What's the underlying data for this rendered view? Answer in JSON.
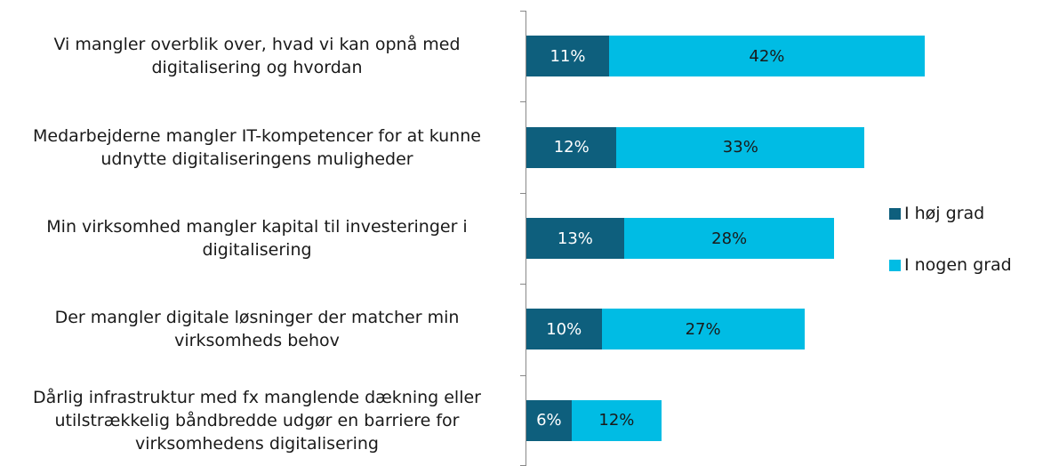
{
  "chart_data": {
    "type": "stacked-bar-horizontal",
    "categories": [
      "Vi mangler overblik over, hvad vi kan opnå med digitalisering og hvordan",
      "Medarbejderne mangler IT-kompetencer for at kunne udnytte digitaliseringens muligheder",
      "Min virksomhed mangler kapital til investeringer i digitalisering",
      "Der mangler digitale løsninger der matcher min virksomheds behov",
      "Dårlig infrastruktur med fx manglende dækning eller utilstrækkelig båndbredde udgør en barriere for virksomhedens digitalisering"
    ],
    "series": [
      {
        "name": "I høj grad",
        "color": "#0e5f7d",
        "label_color": "#ffffff",
        "values": [
          11,
          12,
          13,
          10,
          6
        ],
        "value_labels": [
          "11%",
          "12%",
          "13%",
          "10%",
          "6%"
        ]
      },
      {
        "name": "I nogen grad",
        "color": "#00bce4",
        "label_color": "#1a1a1a",
        "values": [
          42,
          33,
          28,
          27,
          12
        ],
        "value_labels": [
          "42%",
          "33%",
          "28%",
          "27%",
          "12%"
        ]
      }
    ],
    "legend": "right"
  }
}
